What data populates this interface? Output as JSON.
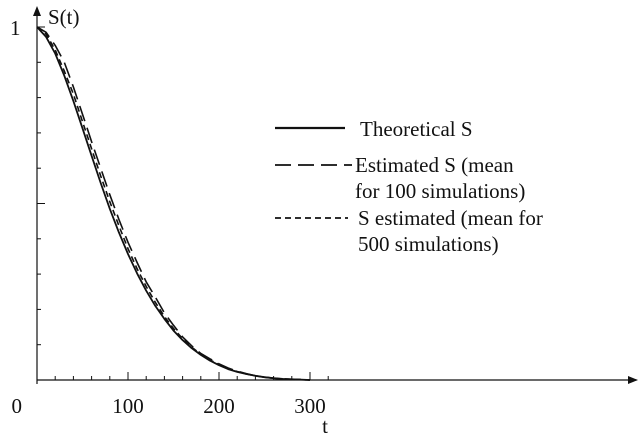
{
  "chart_data": {
    "type": "line",
    "xlabel": "t",
    "ylabel": "S(t)",
    "xlim": [
      0,
      320
    ],
    "ylim": [
      0,
      1
    ],
    "x_ticks": [
      0,
      100,
      200,
      300
    ],
    "x_tick_labels": [
      "0",
      "100",
      "200",
      "300"
    ],
    "y_tick_labels": [
      {
        "value": 1,
        "label": "1"
      }
    ],
    "grid": false,
    "legend_position": "center-right",
    "series": [
      {
        "name": "Theoretical  S",
        "style": "solid",
        "color": "#111111",
        "x": [
          0,
          10,
          20,
          30,
          40,
          50,
          60,
          70,
          80,
          90,
          100,
          110,
          120,
          130,
          140,
          150,
          160,
          170,
          180,
          190,
          200,
          210,
          220,
          230,
          240,
          250,
          260,
          270,
          280,
          290,
          300
        ],
        "y": [
          1.0,
          0.972,
          0.925,
          0.862,
          0.79,
          0.713,
          0.635,
          0.558,
          0.485,
          0.418,
          0.357,
          0.302,
          0.253,
          0.21,
          0.173,
          0.14,
          0.113,
          0.09,
          0.071,
          0.055,
          0.042,
          0.031,
          0.023,
          0.017,
          0.012,
          0.008,
          0.005,
          0.003,
          0.002,
          0.001,
          0.0
        ]
      },
      {
        "name": "Estimated S (mean for 100 simulations)",
        "style": "long-dash",
        "color": "#111111",
        "x": [
          0,
          10,
          20,
          30,
          40,
          50,
          60,
          70,
          80,
          90,
          100,
          110,
          120,
          130,
          140,
          150,
          160,
          170,
          180,
          190,
          200,
          210,
          220,
          230,
          240,
          250,
          260,
          270,
          280,
          290,
          300
        ],
        "y": [
          1.0,
          0.985,
          0.948,
          0.9,
          0.83,
          0.753,
          0.675,
          0.6,
          0.525,
          0.455,
          0.39,
          0.333,
          0.278,
          0.235,
          0.19,
          0.155,
          0.122,
          0.097,
          0.075,
          0.06,
          0.046,
          0.034,
          0.025,
          0.018,
          0.012,
          0.008,
          0.005,
          0.003,
          0.002,
          0.001,
          0.0
        ]
      },
      {
        "name": "S estimated (mean for 500 simulations)",
        "style": "short-dash",
        "color": "#111111",
        "x": [
          0,
          10,
          20,
          30,
          40,
          50,
          60,
          70,
          80,
          90,
          100,
          110,
          120,
          130,
          140,
          150,
          160,
          170,
          180,
          190,
          200,
          210,
          220,
          230,
          240,
          250,
          260,
          270,
          280,
          290,
          300
        ],
        "y": [
          1.0,
          0.98,
          0.935,
          0.875,
          0.81,
          0.732,
          0.655,
          0.578,
          0.505,
          0.437,
          0.372,
          0.315,
          0.265,
          0.22,
          0.18,
          0.146,
          0.117,
          0.093,
          0.073,
          0.057,
          0.044,
          0.032,
          0.024,
          0.017,
          0.012,
          0.008,
          0.005,
          0.003,
          0.002,
          0.001,
          0.0
        ]
      }
    ]
  },
  "legend": {
    "items": [
      {
        "lines": [
          "Theoretical  S"
        ]
      },
      {
        "lines": [
          "Estimated S (mean",
          "for 100 simulations)"
        ]
      },
      {
        "lines": [
          "S estimated (mean for",
          "500 simulations)"
        ]
      }
    ]
  }
}
